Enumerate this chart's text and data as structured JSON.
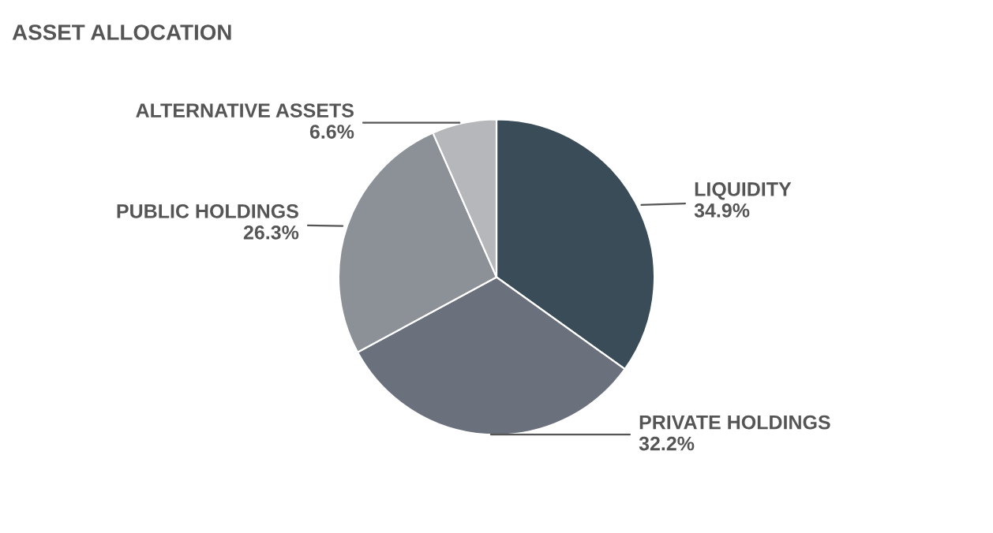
{
  "chart_data": {
    "type": "pie",
    "title": "ASSET ALLOCATION",
    "categories": [
      "LIQUIDITY",
      "PRIVATE HOLDINGS",
      "PUBLIC HOLDINGS",
      "ALTERNATIVE ASSETS"
    ],
    "values": [
      34.9,
      32.2,
      26.3,
      6.6
    ],
    "colors": [
      "#3a4c58",
      "#6b717c",
      "#8c9097",
      "#b5b7ba"
    ],
    "value_labels": [
      "34.9%",
      "32.2%",
      "26.3%",
      "6.6%"
    ],
    "legend": false
  }
}
